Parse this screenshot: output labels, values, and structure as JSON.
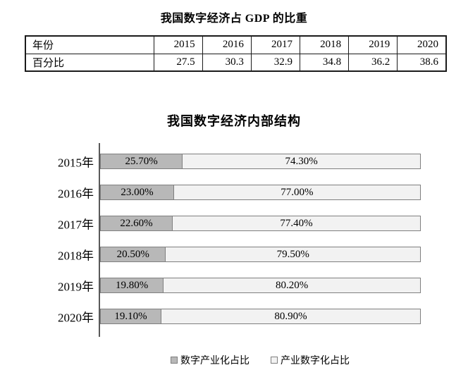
{
  "colors": {
    "digital_industrialization_fill": "#b8b8b8",
    "industry_digitalization_fill": "#f2f2f2",
    "segment_border": "#7f7f7f",
    "axis_line": "#595959",
    "table_border": "#1a1a1a",
    "text": "#000000",
    "background": "#ffffff"
  },
  "chart_data": [
    {
      "type": "table",
      "title": "我国数字经济占 GDP 的比重",
      "row_labels": [
        "年份",
        "百分比"
      ],
      "categories": [
        "2015",
        "2016",
        "2017",
        "2018",
        "2019",
        "2020"
      ],
      "values": [
        "27.5",
        "30.3",
        "32.9",
        "34.8",
        "36.2",
        "38.6"
      ]
    },
    {
      "type": "bar",
      "variant": "horizontal-stacked",
      "title": "我国数字经济内部结构",
      "categories": [
        "2015年",
        "2016年",
        "2017年",
        "2018年",
        "2019年",
        "2020年"
      ],
      "series": [
        {
          "name": "数字产业化占比",
          "color": "#b8b8b8",
          "values": [
            25.7,
            23.0,
            22.6,
            20.5,
            19.8,
            19.1
          ],
          "labels": [
            "25.70%",
            "23.00%",
            "22.60%",
            "20.50%",
            "19.80%",
            "19.10%"
          ]
        },
        {
          "name": "产业数字化占比",
          "color": "#f2f2f2",
          "values": [
            74.3,
            77.0,
            77.4,
            79.5,
            80.2,
            80.9
          ],
          "labels": [
            "74.30%",
            "77.00%",
            "77.40%",
            "79.50%",
            "80.20%",
            "80.90%"
          ]
        }
      ],
      "xlim": [
        0,
        100
      ],
      "grid": false,
      "legend_position": "bottom"
    }
  ]
}
